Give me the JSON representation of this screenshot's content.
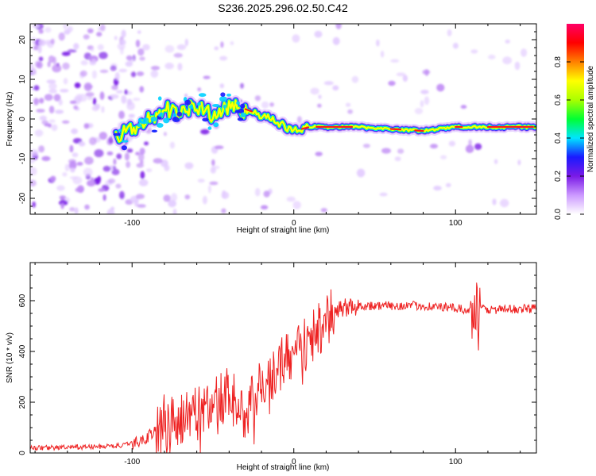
{
  "title": "S236.2025.296.02.50.C42",
  "chart_data": [
    {
      "type": "heatmap",
      "xlabel": "Height of straight line (km)",
      "ylabel": "Frequency (Hz)",
      "xlim": [
        -163,
        150
      ],
      "ylim": [
        -24,
        24
      ],
      "xticks": [
        "-100",
        "0",
        "100"
      ],
      "yticks": [
        "20",
        "10",
        "0",
        "-10",
        "-20"
      ],
      "colorbar": {
        "label": "Normalized spectral amplitude",
        "range": [
          0,
          1
        ],
        "ticks": [
          "0.0",
          "0.2",
          "0.4",
          "0.6",
          "0.8"
        ],
        "colors": [
          "#ffffff",
          "#cc99ff",
          "#7a1ae6",
          "#1a1aff",
          "#00e5ff",
          "#00ff33",
          "#aaff00",
          "#ffff00",
          "#ff8000",
          "#ff0000",
          "#ff0066"
        ]
      },
      "ridge": {
        "x": [
          -110,
          -100,
          -90,
          -80,
          -70,
          -60,
          -50,
          -40,
          -30,
          -20,
          -10,
          0,
          10,
          20,
          40,
          60,
          80,
          90,
          100,
          110,
          130,
          150
        ],
        "freq": [
          -4,
          -3,
          0,
          2,
          2,
          3,
          1,
          3,
          2.5,
          1,
          -1,
          -3,
          -2,
          -2,
          -2,
          -2.5,
          -3,
          -2.5,
          -2,
          -2,
          -2,
          -2
        ]
      }
    },
    {
      "type": "line",
      "xlabel": "Height of straight line (km)",
      "ylabel": "SNR (10 * v/v)",
      "xlim": [
        -163,
        150
      ],
      "ylim": [
        0,
        750
      ],
      "xticks": [
        "-100",
        "0",
        "100"
      ],
      "yticks": [
        "0",
        "200",
        "400",
        "600"
      ],
      "color": "#ee2222",
      "series": [
        {
          "name": "SNR",
          "x": [
            -163,
            -140,
            -120,
            -105,
            -95,
            -85,
            -80,
            -70,
            -60,
            -50,
            -40,
            -30,
            -20,
            -15,
            -10,
            -5,
            0,
            5,
            10,
            15,
            20,
            25,
            30,
            40,
            60,
            80,
            100,
            108,
            112,
            114,
            116,
            120,
            130,
            150
          ],
          "y": [
            20,
            22,
            25,
            30,
            45,
            90,
            140,
            130,
            150,
            190,
            230,
            150,
            260,
            300,
            330,
            370,
            400,
            410,
            440,
            480,
            520,
            550,
            570,
            580,
            580,
            580,
            570,
            560,
            620,
            480,
            570,
            565,
            565,
            570
          ]
        }
      ]
    }
  ]
}
